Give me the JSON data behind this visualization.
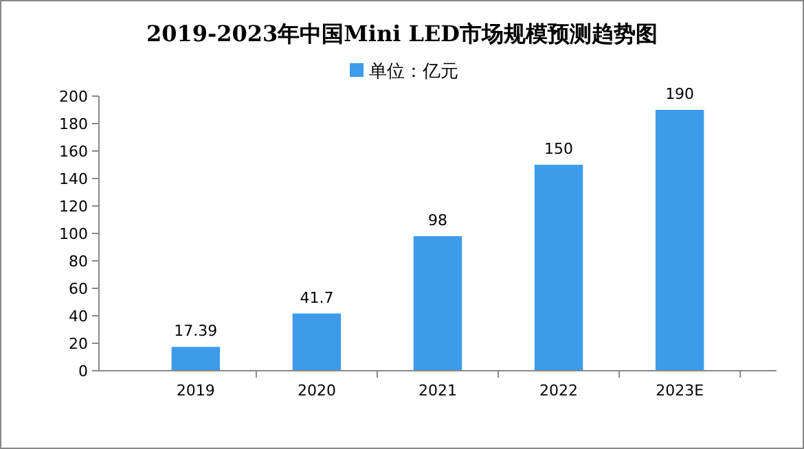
{
  "chart_data": {
    "type": "bar",
    "title": "2019-2023年中国Mini LED市场规模预测趋势图",
    "categories": [
      "2019",
      "2020",
      "2021",
      "2022",
      "2023E"
    ],
    "series": [
      {
        "name": "单位：亿元",
        "color": "#3d9bea",
        "values": [
          17.39,
          41.7,
          98,
          150,
          190
        ]
      }
    ],
    "ylim": [
      0,
      200
    ],
    "yticks": [
      0,
      20,
      40,
      60,
      80,
      100,
      120,
      140,
      160,
      180,
      200
    ],
    "data_labels": true,
    "legend": "top",
    "grid": false
  }
}
